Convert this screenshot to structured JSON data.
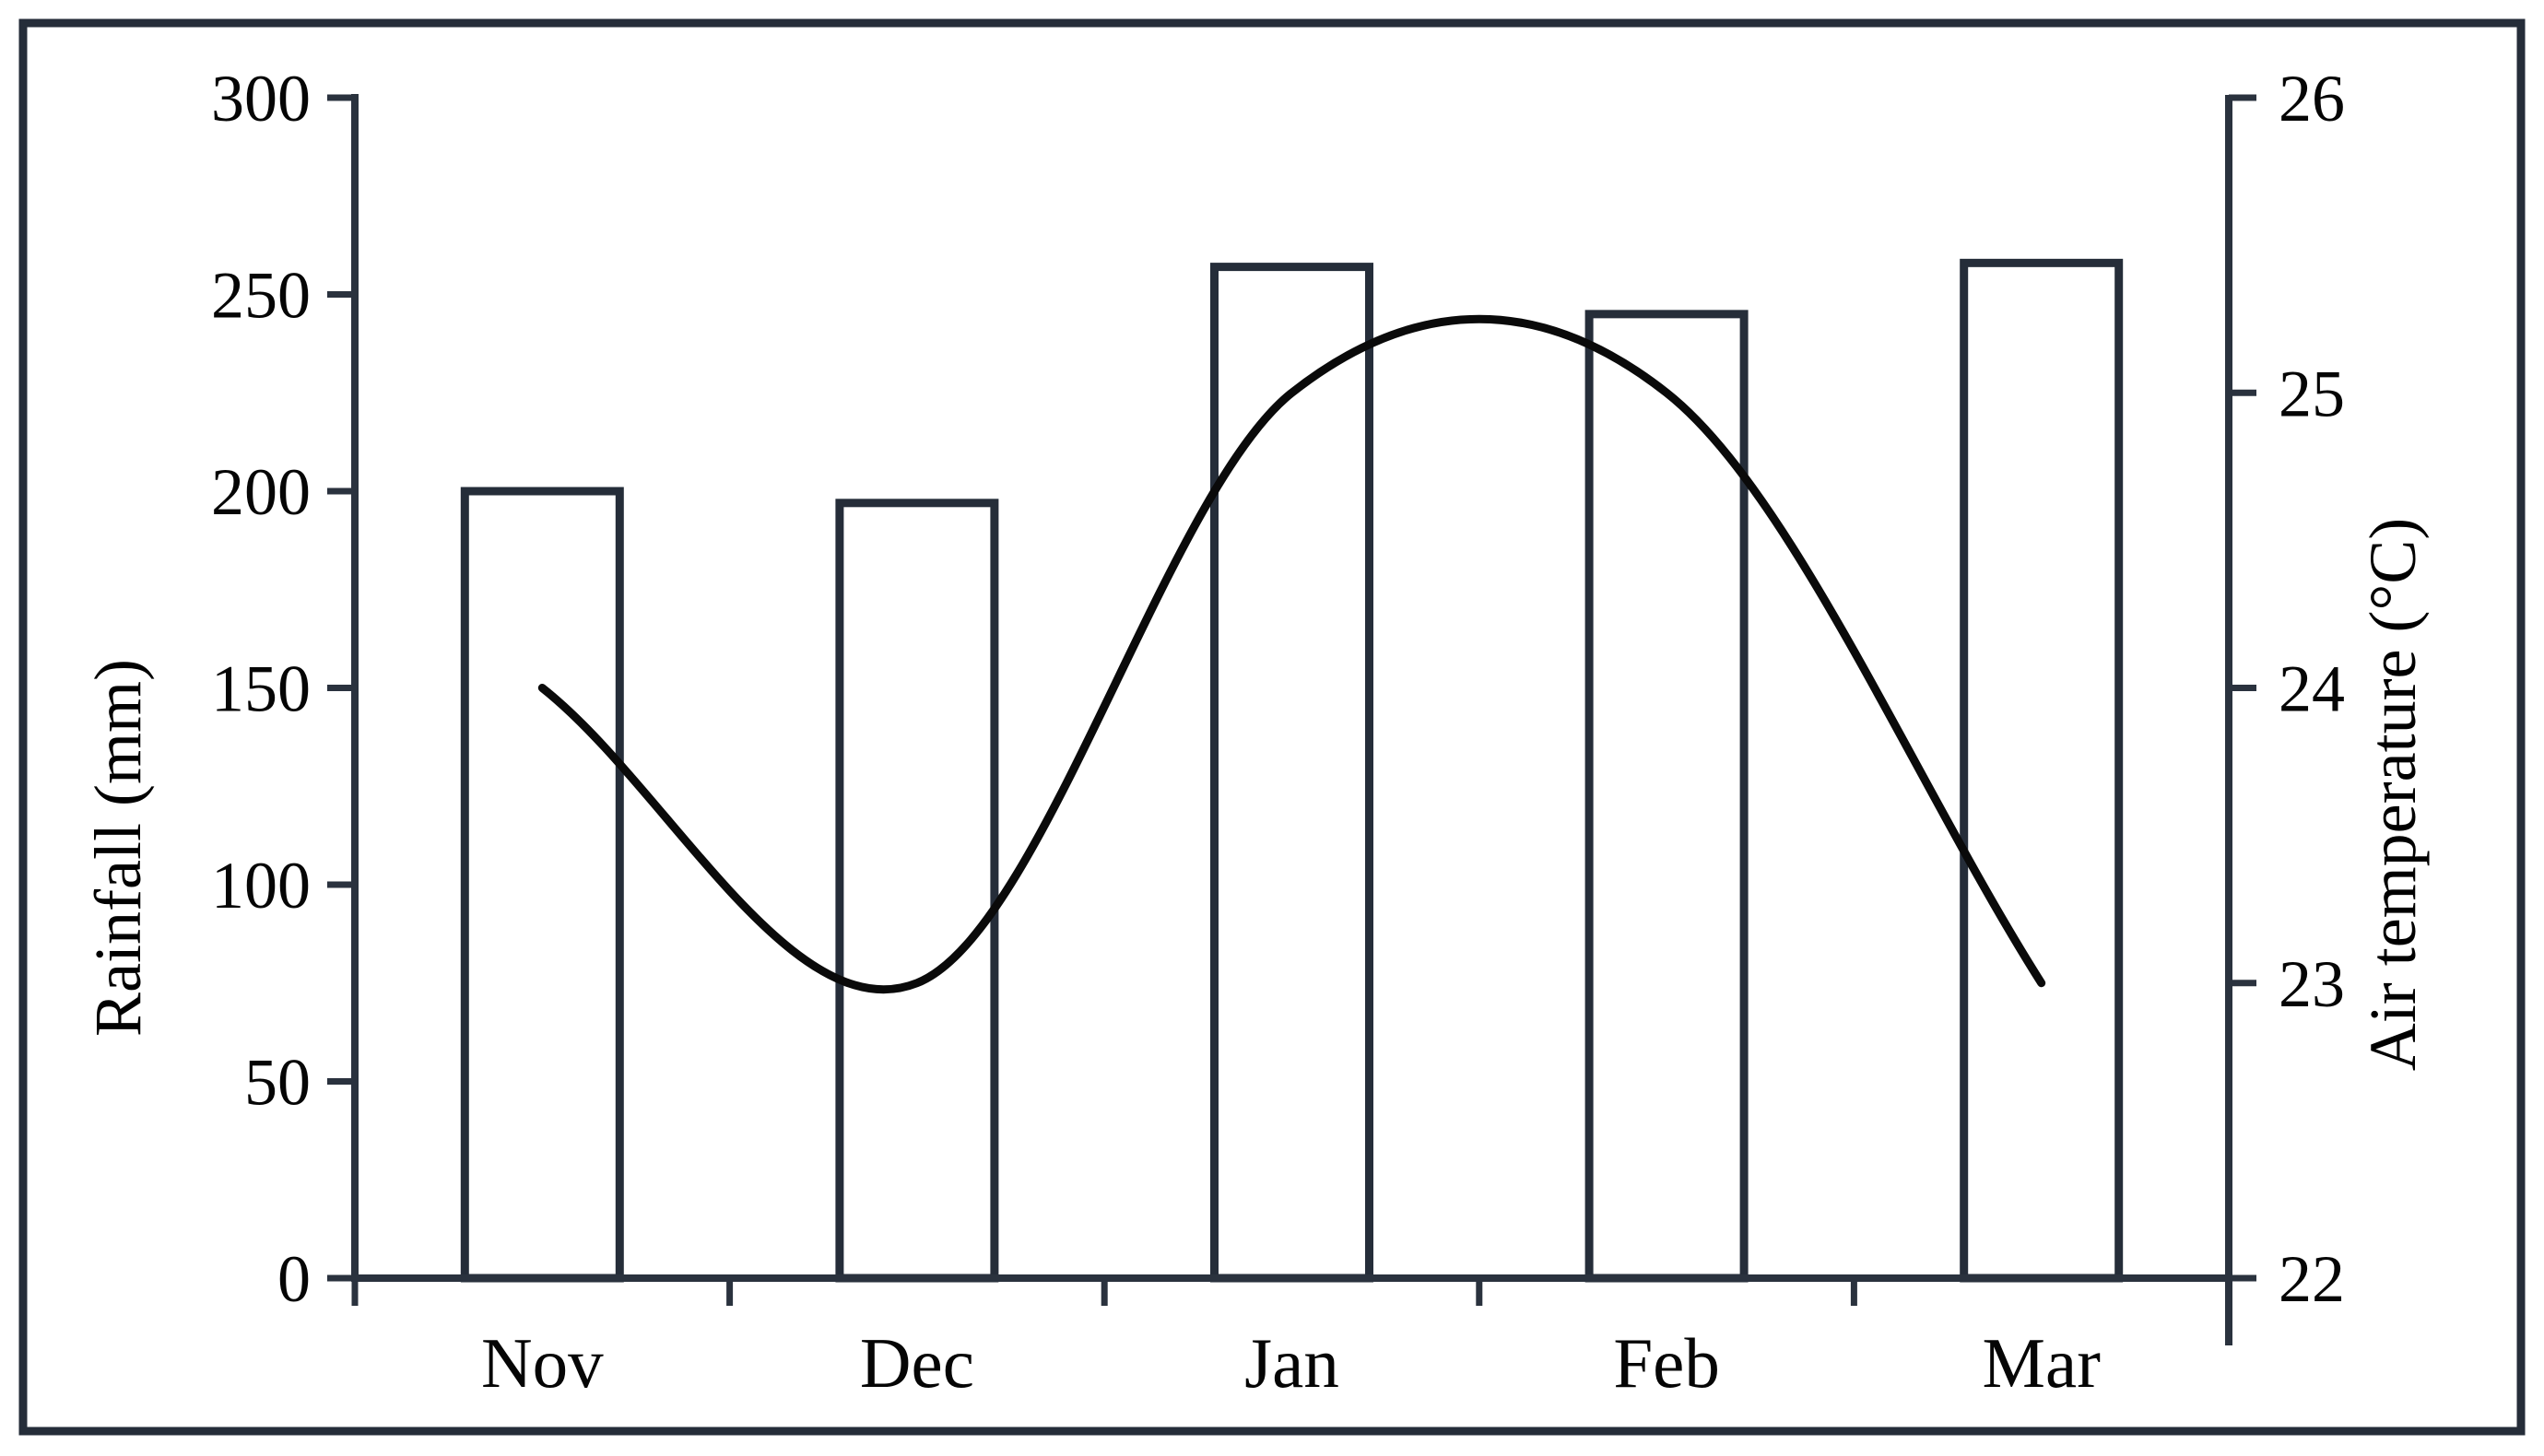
{
  "figure": {
    "background": "#ffffff",
    "border_color": "#252d39",
    "axis_color": "#2a323e",
    "bar_outline_color": "#252d39",
    "bar_fill_color": "#ffffff",
    "line_color": "#0a0a0a",
    "text_color": "#050505"
  },
  "chart_data": {
    "type": "combo",
    "categories": [
      "Nov",
      "Dec",
      "Jan",
      "Feb",
      "Mar"
    ],
    "series": [
      {
        "name": "Rainfall",
        "type": "bar",
        "axis": "left",
        "values": [
          200,
          197,
          257,
          245,
          258
        ]
      },
      {
        "name": "Air temperature",
        "type": "line",
        "axis": "right",
        "smooth": true,
        "values": [
          24,
          23,
          25,
          25,
          23
        ]
      }
    ],
    "left_axis": {
      "label": "Rainfall (mm)",
      "min": 0,
      "max": 300,
      "ticks": [
        0,
        50,
        100,
        150,
        200,
        250,
        300
      ]
    },
    "right_axis": {
      "label": "Air temperature (°C)",
      "min": 22,
      "max": 26,
      "ticks": [
        22,
        23,
        24,
        25,
        26
      ]
    },
    "grid": false,
    "legend": null
  }
}
